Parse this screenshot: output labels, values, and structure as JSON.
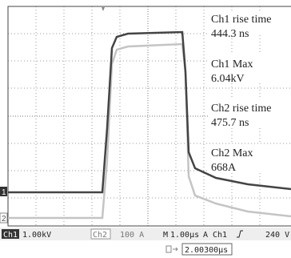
{
  "measurements": [
    {
      "label": "Ch1 rise time",
      "value": "444.3 ns"
    },
    {
      "label": "Ch1 Max",
      "value": "6.04kV"
    },
    {
      "label": "Ch2 rise time",
      "value": "475.7 ns"
    },
    {
      "label": "Ch2 Max",
      "value": "668A"
    }
  ],
  "markers": {
    "ch1": "1",
    "ch2": "2"
  },
  "status_bar": {
    "ch1": "Ch1",
    "ch1_scale": "1.00kV",
    "ch2": "Ch2",
    "ch2_scale": "100 A",
    "timebase_label": "M",
    "timebase": "1.00µs",
    "trigger_label": "A",
    "trigger_source": "Ch1",
    "trigger_level": "240 V"
  },
  "trigger_position": "2.00300µs"
}
